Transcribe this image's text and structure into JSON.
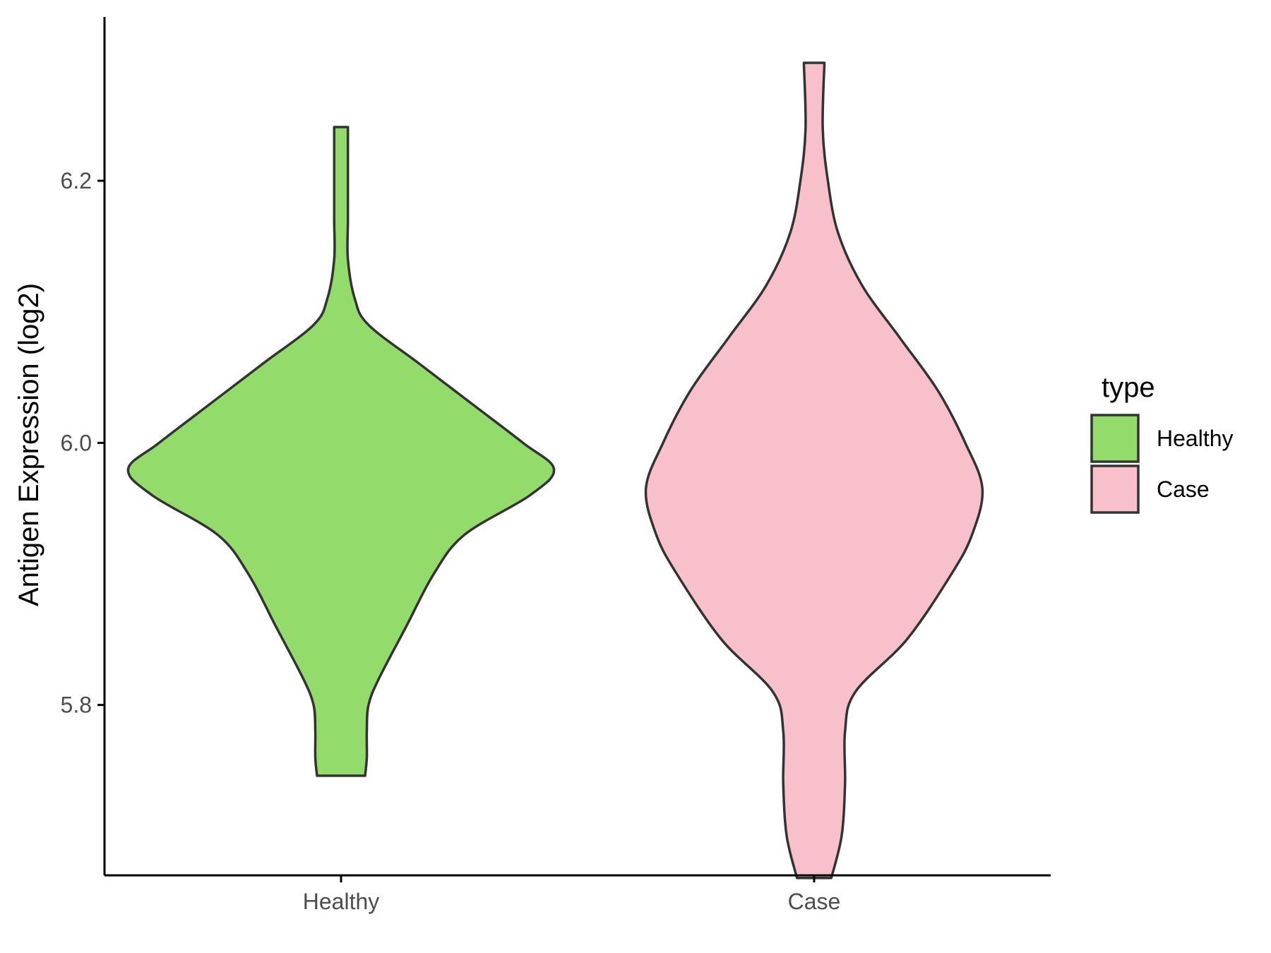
{
  "chart_data": {
    "type": "violin",
    "title": "",
    "xlabel": "",
    "ylabel": "Antigen Expression (log2)",
    "ylim": [
      5.67,
      6.325
    ],
    "yticks": [
      5.8,
      6.0,
      6.2
    ],
    "ytick_labels": [
      "5.8",
      "6.0",
      "6.2"
    ],
    "categories": [
      "Healthy",
      "Case"
    ],
    "legend": {
      "title": "type",
      "position": "right",
      "entries": [
        {
          "label": "Healthy",
          "color": "#93DC6B"
        },
        {
          "label": "Case",
          "color": "#F7C0CB"
        }
      ]
    },
    "series": [
      {
        "category": "Healthy",
        "color": "#93DC6B",
        "min": 5.746,
        "max": 6.241,
        "density_profile": [
          [
            5.746,
            0.07
          ],
          [
            5.76,
            0.075
          ],
          [
            5.78,
            0.075
          ],
          [
            5.8,
            0.08
          ],
          [
            5.82,
            0.11
          ],
          [
            5.86,
            0.19
          ],
          [
            5.9,
            0.27
          ],
          [
            5.93,
            0.36
          ],
          [
            5.96,
            0.55
          ],
          [
            5.98,
            0.62
          ],
          [
            6.0,
            0.53
          ],
          [
            6.03,
            0.38
          ],
          [
            6.06,
            0.23
          ],
          [
            6.09,
            0.08
          ],
          [
            6.11,
            0.04
          ],
          [
            6.14,
            0.02
          ],
          [
            6.17,
            0.02
          ],
          [
            6.2,
            0.02
          ],
          [
            6.23,
            0.02
          ],
          [
            6.241,
            0.02
          ]
        ]
      },
      {
        "category": "Case",
        "color": "#F7C0CB",
        "min": 5.668,
        "max": 6.292,
        "density_profile": [
          [
            5.668,
            0.05
          ],
          [
            5.7,
            0.08
          ],
          [
            5.74,
            0.09
          ],
          [
            5.78,
            0.09
          ],
          [
            5.81,
            0.12
          ],
          [
            5.85,
            0.27
          ],
          [
            5.9,
            0.4
          ],
          [
            5.93,
            0.46
          ],
          [
            5.965,
            0.49
          ],
          [
            6.0,
            0.44
          ],
          [
            6.04,
            0.36
          ],
          [
            6.08,
            0.25
          ],
          [
            6.12,
            0.14
          ],
          [
            6.16,
            0.07
          ],
          [
            6.2,
            0.04
          ],
          [
            6.24,
            0.025
          ],
          [
            6.29,
            0.03
          ]
        ]
      }
    ]
  }
}
